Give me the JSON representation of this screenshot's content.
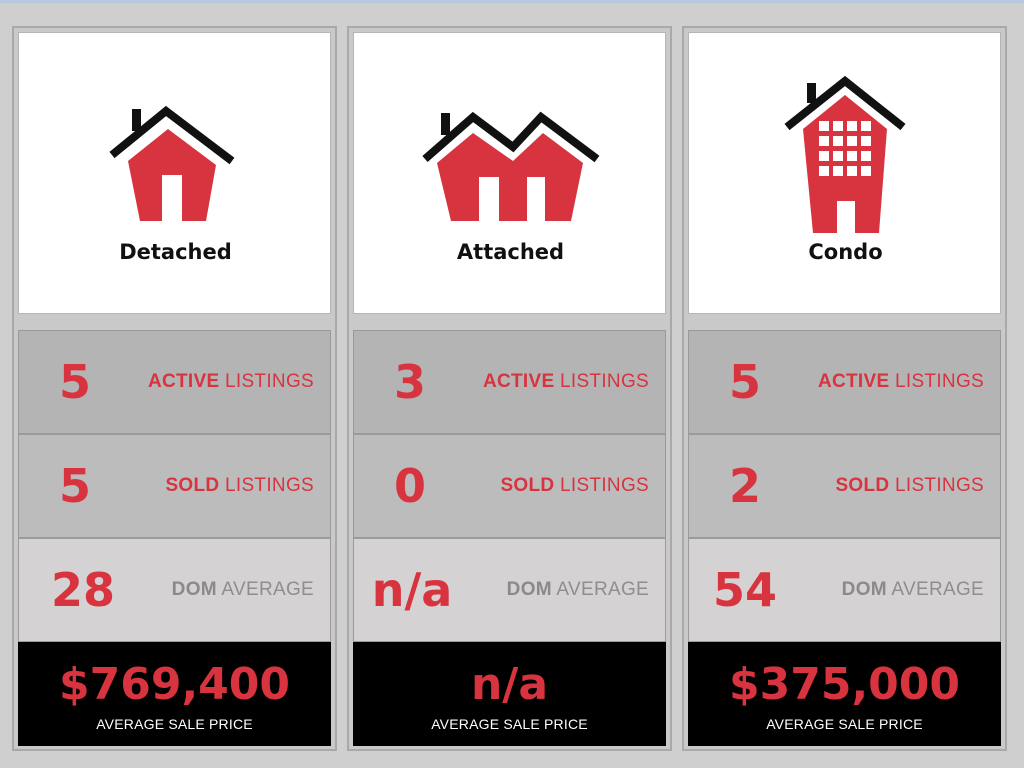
{
  "colors": {
    "accent": "#d8343f",
    "roof": "#111111",
    "price_bg": "#000000",
    "muted_label": "#8e8e8e"
  },
  "cards": [
    {
      "type_label": "Detached",
      "icon": "detached-house-icon",
      "active": {
        "value": "5",
        "bold": "ACTIVE",
        "rest": " LISTINGS"
      },
      "sold": {
        "value": "5",
        "bold": "SOLD",
        "rest": " LISTINGS"
      },
      "dom": {
        "value": "28",
        "bold": "DOM",
        "rest": " AVERAGE"
      },
      "price": {
        "value": "$769,400",
        "caption": "AVERAGE SALE PRICE"
      }
    },
    {
      "type_label": "Attached",
      "icon": "attached-house-icon",
      "active": {
        "value": "3",
        "bold": "ACTIVE",
        "rest": " LISTINGS"
      },
      "sold": {
        "value": "0",
        "bold": "SOLD",
        "rest": " LISTINGS"
      },
      "dom": {
        "value": "n/a",
        "bold": "DOM",
        "rest": " AVERAGE"
      },
      "price": {
        "value": "n/a",
        "caption": "AVERAGE SALE PRICE"
      }
    },
    {
      "type_label": "Condo",
      "icon": "condo-building-icon",
      "active": {
        "value": "5",
        "bold": "ACTIVE",
        "rest": " LISTINGS"
      },
      "sold": {
        "value": "2",
        "bold": "SOLD",
        "rest": " LISTINGS"
      },
      "dom": {
        "value": "54",
        "bold": "DOM",
        "rest": " AVERAGE"
      },
      "price": {
        "value": "$375,000",
        "caption": "AVERAGE SALE PRICE"
      }
    }
  ]
}
